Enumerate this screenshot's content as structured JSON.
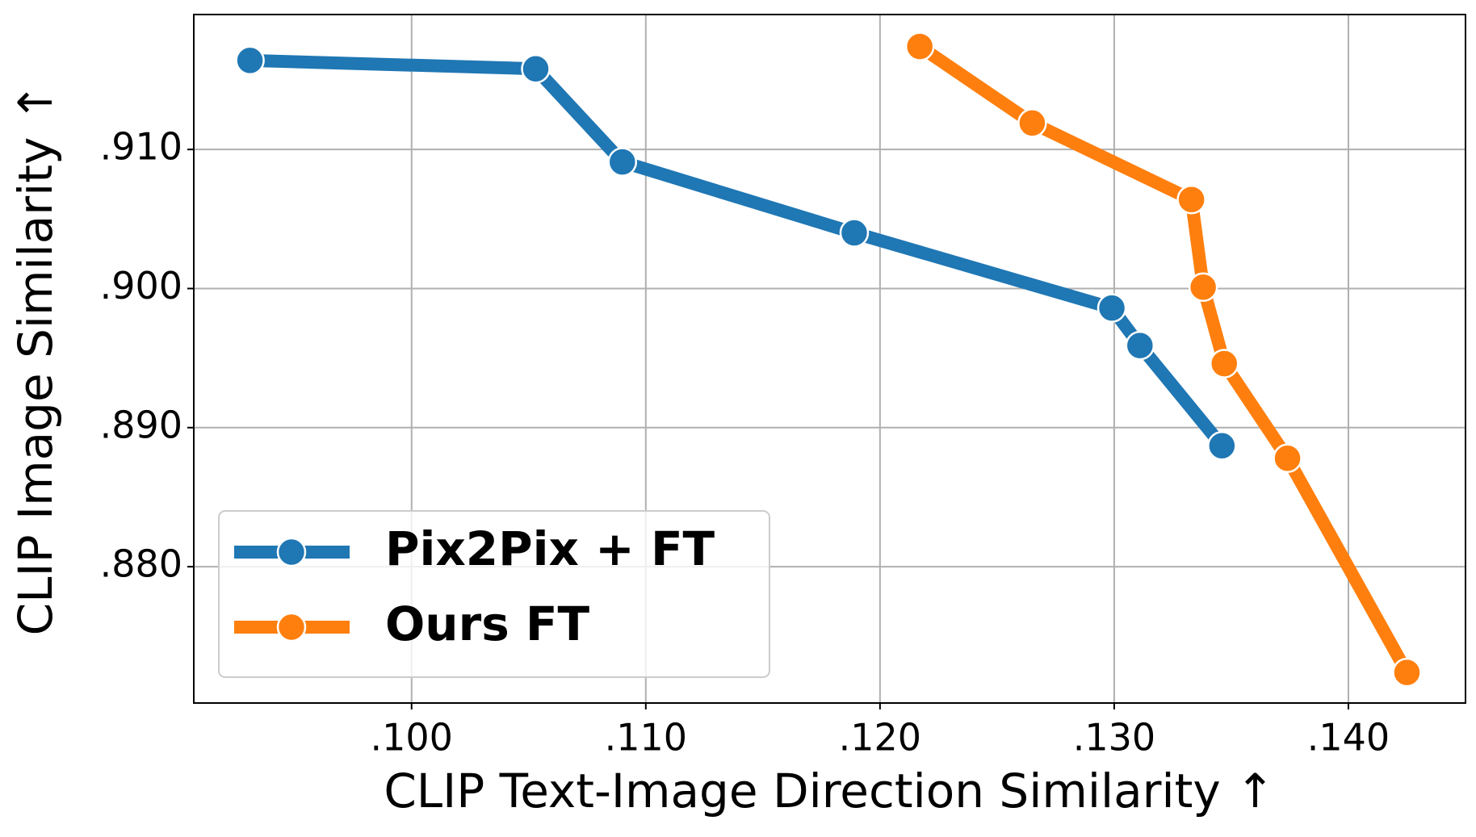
{
  "chart_data": {
    "type": "line",
    "x_label": "CLIP Text-Image Direction Similarity ↑",
    "y_label": "CLIP Image Similarity ↑",
    "xlim": [
      0.0907,
      0.145
    ],
    "ylim": [
      0.8702,
      0.9197
    ],
    "xticks": [
      {
        "value": 0.1,
        "label": ".100"
      },
      {
        "value": 0.11,
        "label": ".110"
      },
      {
        "value": 0.12,
        "label": ".120"
      },
      {
        "value": 0.13,
        "label": ".130"
      },
      {
        "value": 0.14,
        "label": ".140"
      }
    ],
    "yticks": [
      {
        "value": 0.88,
        "label": ".880"
      },
      {
        "value": 0.89,
        "label": ".890"
      },
      {
        "value": 0.9,
        "label": ".900"
      },
      {
        "value": 0.91,
        "label": ".910"
      }
    ],
    "grid": true,
    "legend": "lower left",
    "series": [
      {
        "name": "Pix2Pix + FT",
        "color": "#1f77b4",
        "x": [
          0.0931,
          0.1053,
          0.109,
          0.1189,
          0.1299,
          0.1311,
          0.1346
        ],
        "values": [
          0.9164,
          0.9158,
          0.9091,
          0.904,
          0.8986,
          0.8959,
          0.8887
        ]
      },
      {
        "name": "Ours FT",
        "color": "#ff7f0e",
        "x": [
          0.1217,
          0.1265,
          0.1333,
          0.1338,
          0.1347,
          0.1374,
          0.1425
        ],
        "values": [
          0.9174,
          0.9119,
          0.9064,
          0.9001,
          0.8946,
          0.8878,
          0.8724
        ]
      }
    ]
  }
}
